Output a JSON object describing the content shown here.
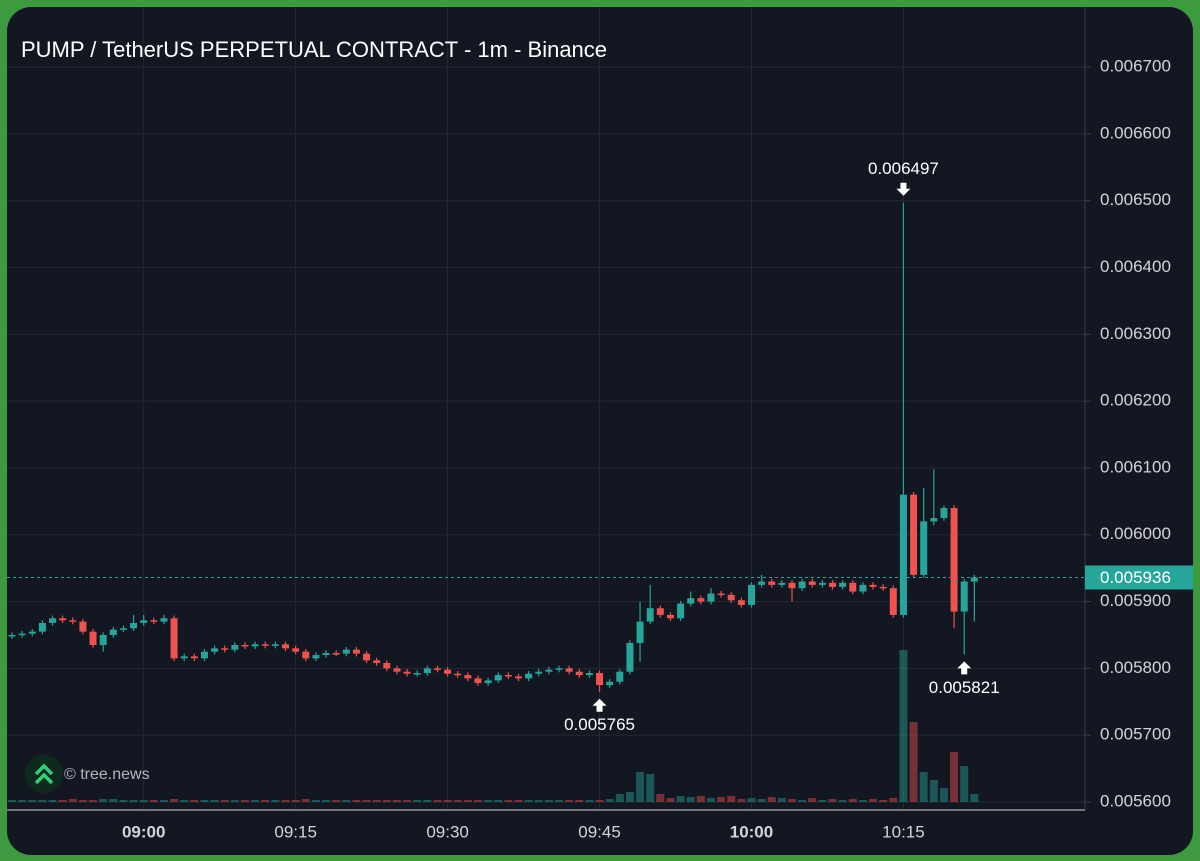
{
  "chart_data": {
    "type": "candlestick",
    "title": "PUMP / TetherUS PERPETUAL CONTRACT - 1m - Binance",
    "watermark": "© tree.news",
    "categories": [
      null,
      null,
      null,
      null,
      null,
      null,
      null,
      null,
      null,
      null,
      null,
      null,
      null,
      "09:00",
      null,
      null,
      null,
      null,
      null,
      null,
      null,
      null,
      null,
      null,
      null,
      null,
      null,
      null,
      "09:15",
      null,
      null,
      null,
      null,
      null,
      null,
      null,
      null,
      null,
      null,
      null,
      null,
      null,
      null,
      "09:30",
      null,
      null,
      null,
      null,
      null,
      null,
      null,
      null,
      null,
      null,
      null,
      null,
      null,
      null,
      "09:45",
      null,
      null,
      null,
      null,
      null,
      null,
      null,
      null,
      null,
      null,
      null,
      null,
      null,
      null,
      "10:00",
      null,
      null,
      null,
      null,
      null,
      null,
      null,
      null,
      null,
      null,
      null,
      null,
      null,
      null,
      "10:15",
      null,
      null,
      null,
      null,
      null,
      null,
      null
    ],
    "open": [
      0.005848,
      0.00585,
      0.005852,
      0.005855,
      0.005868,
      0.005875,
      0.005872,
      0.00587,
      0.005855,
      0.005835,
      0.00585,
      0.005858,
      0.00586,
      0.005868,
      0.005872,
      0.00587,
      0.005875,
      0.005815,
      0.005818,
      0.005815,
      0.005825,
      0.00583,
      0.005828,
      0.005835,
      0.005833,
      0.005836,
      0.005834,
      0.005836,
      0.00583,
      0.005825,
      0.005815,
      0.00582,
      0.005823,
      0.005822,
      0.005828,
      0.005822,
      0.005812,
      0.005808,
      0.0058,
      0.005795,
      0.005792,
      0.005793,
      0.0058,
      0.005798,
      0.005792,
      0.00579,
      0.005785,
      0.005778,
      0.005782,
      0.00579,
      0.005788,
      0.005785,
      0.005792,
      0.005795,
      0.005798,
      0.0058,
      0.005795,
      0.00579,
      0.005793,
      0.005775,
      0.00578,
      0.005795,
      0.005838,
      0.00587,
      0.00589,
      0.00588,
      0.005875,
      0.005897,
      0.005905,
      0.0059,
      0.005912,
      0.00591,
      0.005902,
      0.005895,
      0.005925,
      0.00593,
      0.005925,
      0.005928,
      0.00592,
      0.00593,
      0.005925,
      0.005928,
      0.005922,
      0.005928,
      0.005915,
      0.005925,
      0.005922,
      0.00592,
      0.00588,
      0.00606,
      0.00594,
      0.00602,
      0.006025,
      0.00604,
      0.005885,
      0.00593
    ],
    "high": [
      0.005854,
      0.005856,
      0.005859,
      0.005872,
      0.005879,
      0.005879,
      0.005876,
      0.005874,
      0.005859,
      0.005854,
      0.005862,
      0.005864,
      0.00588,
      0.00588,
      0.005876,
      0.00588,
      0.005879,
      0.005822,
      0.005822,
      0.005829,
      0.005834,
      0.005834,
      0.005839,
      0.005839,
      0.00584,
      0.00584,
      0.00584,
      0.00584,
      0.005834,
      0.005829,
      0.005824,
      0.005827,
      0.005827,
      0.005832,
      0.005832,
      0.005826,
      0.005816,
      0.005812,
      0.005804,
      0.005799,
      0.005797,
      0.005804,
      0.005804,
      0.005802,
      0.005796,
      0.005794,
      0.005789,
      0.005786,
      0.005794,
      0.005794,
      0.005792,
      0.005796,
      0.005799,
      0.005802,
      0.005804,
      0.005804,
      0.005799,
      0.005797,
      0.005797,
      0.005784,
      0.005799,
      0.005842,
      0.0059,
      0.005925,
      0.005894,
      0.005884,
      0.005901,
      0.005915,
      0.005909,
      0.00592,
      0.005916,
      0.005914,
      0.005906,
      0.005929,
      0.00594,
      0.005934,
      0.005932,
      0.005932,
      0.005934,
      0.005934,
      0.005932,
      0.005932,
      0.005932,
      0.005932,
      0.005929,
      0.005929,
      0.005926,
      0.005924,
      0.006497,
      0.006064,
      0.00607,
      0.006098,
      0.006044,
      0.006044,
      0.005934,
      0.00594
    ],
    "low": [
      0.005844,
      0.005846,
      0.005848,
      0.005851,
      0.005864,
      0.005868,
      0.005866,
      0.005851,
      0.005831,
      0.005825,
      0.005846,
      0.005854,
      0.005856,
      0.005864,
      0.005866,
      0.005866,
      0.005811,
      0.005811,
      0.005811,
      0.005811,
      0.005821,
      0.005824,
      0.005824,
      0.005829,
      0.005829,
      0.00583,
      0.00583,
      0.005826,
      0.005821,
      0.005811,
      0.005811,
      0.005816,
      0.005818,
      0.005818,
      0.005818,
      0.005808,
      0.005804,
      0.005796,
      0.005791,
      0.005788,
      0.005788,
      0.005789,
      0.005794,
      0.005788,
      0.005786,
      0.005781,
      0.005774,
      0.005774,
      0.005778,
      0.005784,
      0.005781,
      0.005781,
      0.005788,
      0.005791,
      0.005794,
      0.005791,
      0.005786,
      0.005786,
      0.005765,
      0.005771,
      0.005776,
      0.005791,
      0.00581,
      0.005866,
      0.005876,
      0.005871,
      0.005871,
      0.005893,
      0.005896,
      0.005896,
      0.005906,
      0.005898,
      0.005891,
      0.005891,
      0.005921,
      0.005921,
      0.005921,
      0.0059,
      0.005916,
      0.005921,
      0.005921,
      0.005918,
      0.005918,
      0.005911,
      0.005911,
      0.005918,
      0.005916,
      0.005876,
      0.005876,
      0.005936,
      0.005936,
      0.006014,
      0.006021,
      0.00586,
      0.005821,
      0.00587
    ],
    "close": [
      0.00585,
      0.005852,
      0.005855,
      0.005868,
      0.005875,
      0.005872,
      0.00587,
      0.005855,
      0.005835,
      0.00585,
      0.005858,
      0.00586,
      0.005868,
      0.005872,
      0.00587,
      0.005875,
      0.005815,
      0.005818,
      0.005815,
      0.005825,
      0.00583,
      0.005828,
      0.005835,
      0.005833,
      0.005836,
      0.005834,
      0.005836,
      0.00583,
      0.005825,
      0.005815,
      0.00582,
      0.005823,
      0.005822,
      0.005828,
      0.005822,
      0.005812,
      0.005808,
      0.0058,
      0.005795,
      0.005792,
      0.005793,
      0.0058,
      0.005798,
      0.005792,
      0.00579,
      0.005785,
      0.005778,
      0.005782,
      0.00579,
      0.005788,
      0.005785,
      0.005792,
      0.005795,
      0.005798,
      0.0058,
      0.005795,
      0.00579,
      0.005793,
      0.005775,
      0.00578,
      0.005795,
      0.005838,
      0.00587,
      0.00589,
      0.00588,
      0.005875,
      0.005897,
      0.005905,
      0.0059,
      0.005912,
      0.00591,
      0.005902,
      0.005895,
      0.005925,
      0.00593,
      0.005925,
      0.005928,
      0.00592,
      0.00593,
      0.005925,
      0.005928,
      0.005922,
      0.005928,
      0.005915,
      0.005925,
      0.005922,
      0.00592,
      0.00588,
      0.00606,
      0.00594,
      0.00602,
      0.006025,
      0.00604,
      0.005885,
      0.00593,
      0.005936
    ],
    "volume": [
      2,
      2,
      2,
      2,
      2,
      2,
      3,
      2,
      2,
      3,
      3,
      2,
      2,
      2,
      2,
      2,
      3,
      2,
      2,
      2,
      2,
      2,
      2,
      2,
      2,
      2,
      2,
      2,
      2,
      3,
      2,
      2,
      2,
      2,
      2,
      2,
      2,
      2,
      2,
      2,
      2,
      2,
      2,
      2,
      2,
      2,
      2,
      2,
      2,
      2,
      2,
      2,
      2,
      2,
      2,
      2,
      2,
      2,
      2,
      3,
      8,
      10,
      30,
      28,
      8,
      4,
      6,
      5,
      6,
      4,
      5,
      6,
      3,
      4,
      3,
      5,
      4,
      3,
      2,
      4,
      2,
      3,
      2,
      3,
      2,
      3,
      2,
      4,
      152,
      80,
      30,
      22,
      14,
      50,
      36,
      8
    ],
    "up_color": "#26a69a",
    "down_color": "#ef5350",
    "ylim": [
      0.005588,
      0.00679
    ],
    "yticks": [
      {
        "value": 0.0056,
        "label": "0.005600"
      },
      {
        "value": 0.0057,
        "label": "0.005700"
      },
      {
        "value": 0.0058,
        "label": "0.005800"
      },
      {
        "value": 0.0059,
        "label": "0.005900"
      },
      {
        "value": 0.006,
        "label": "0.006000"
      },
      {
        "value": 0.0061,
        "label": "0.006100"
      },
      {
        "value": 0.0062,
        "label": "0.006200"
      },
      {
        "value": 0.0063,
        "label": "0.006300"
      },
      {
        "value": 0.0064,
        "label": "0.006400"
      },
      {
        "value": 0.0065,
        "label": "0.006500"
      },
      {
        "value": 0.0066,
        "label": "0.006600"
      },
      {
        "value": 0.0067,
        "label": "0.006700"
      }
    ],
    "last_price": {
      "value": 0.005936,
      "label": "0.005936"
    },
    "annotations": [
      {
        "label": "0.006497",
        "value": 0.006497,
        "index": 88,
        "side": "above"
      },
      {
        "label": "0.005765",
        "value": 0.005765,
        "index": 58,
        "side": "below"
      },
      {
        "label": "0.005821",
        "value": 0.005821,
        "index": 94,
        "side": "below"
      }
    ],
    "grid": true
  }
}
